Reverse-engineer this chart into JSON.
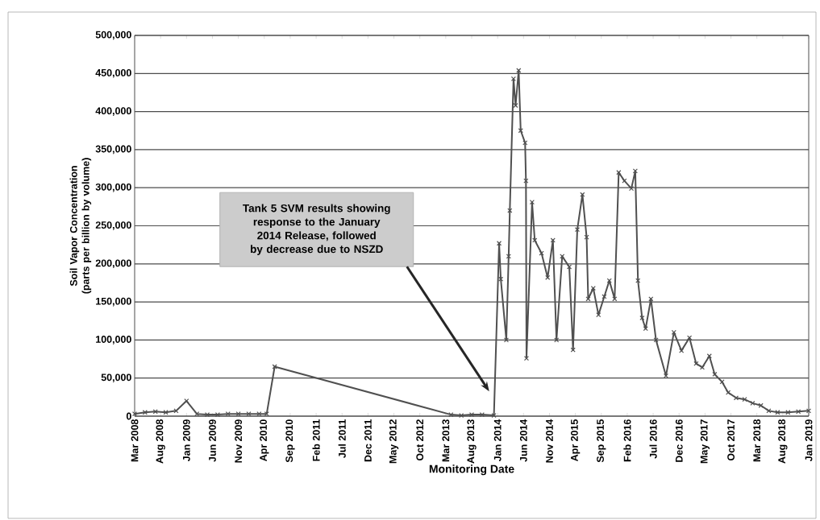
{
  "chart_data": {
    "type": "line",
    "xlabel": "Monitoring Date",
    "ylabel": "Soil Vapor Concentration (parts per billion by volume)",
    "x": [
      "2008-03-01",
      "2008-05-01",
      "2008-07-01",
      "2008-09-01",
      "2008-11-01",
      "2009-01-01",
      "2009-03-01",
      "2009-05-01",
      "2009-07-01",
      "2009-09-01",
      "2009-11-01",
      "2010-01-01",
      "2010-03-01",
      "2010-04-15",
      "2010-06-01",
      "2013-04-01",
      "2013-06-01",
      "2013-08-01",
      "2013-10-01",
      "2013-12-10",
      "2014-01-10",
      "2014-01-20",
      "2014-02-20",
      "2014-03-05",
      "2014-03-12",
      "2014-04-03",
      "2014-04-15",
      "2014-05-03",
      "2014-05-15",
      "2014-06-10",
      "2014-06-15",
      "2014-06-18",
      "2014-07-21",
      "2014-08-06",
      "2014-09-15",
      "2014-10-21",
      "2014-11-21",
      "2014-12-12",
      "2015-01-15",
      "2015-02-24",
      "2015-03-18",
      "2015-04-12",
      "2015-05-12",
      "2015-06-06",
      "2015-06-15",
      "2015-07-15",
      "2015-08-15",
      "2015-09-18",
      "2015-10-18",
      "2015-11-18",
      "2015-12-12",
      "2016-01-15",
      "2016-02-24",
      "2016-03-18",
      "2016-04-03",
      "2016-04-27",
      "2016-05-18",
      "2016-06-18",
      "2016-07-18",
      "2016-09-15",
      "2016-11-01",
      "2016-12-15",
      "2017-02-01",
      "2017-03-10",
      "2017-04-15",
      "2017-05-27",
      "2017-06-27",
      "2017-08-10",
      "2017-09-15",
      "2017-11-01",
      "2017-12-21",
      "2018-02-06",
      "2018-03-25",
      "2018-05-10",
      "2018-07-01",
      "2018-09-01",
      "2018-11-01",
      "2019-01-01"
    ],
    "series": [
      {
        "color": "#505050",
        "values": [
          3000,
          5000,
          6000,
          5000,
          7000,
          20000,
          3000,
          2000,
          2000,
          3000,
          3000,
          3000,
          3000,
          3000,
          65000,
          2000,
          1000,
          2000,
          2000,
          1000,
          227000,
          180000,
          100000,
          210000,
          270000,
          443000,
          408000,
          454000,
          375000,
          359000,
          309000,
          76000,
          281000,
          231000,
          214000,
          182000,
          231000,
          100000,
          210000,
          196000,
          87000,
          245000,
          291000,
          235000,
          154000,
          168000,
          133000,
          157000,
          178000,
          154000,
          320000,
          309000,
          299000,
          322000,
          178000,
          129000,
          115000,
          154000,
          100000,
          53000,
          110000,
          86000,
          103000,
          69000,
          64000,
          79000,
          55000,
          45000,
          31000,
          24000,
          22000,
          17000,
          14000,
          7000,
          5000,
          5000,
          6000,
          7000
        ]
      }
    ],
    "xlim": [
      "2008-03",
      "2019-01"
    ],
    "xticks": [
      {
        "value": "2008-03",
        "label": "Mar 2008"
      },
      {
        "value": "2008-08",
        "label": "Aug 2008"
      },
      {
        "value": "2009-01",
        "label": "Jan 2009"
      },
      {
        "value": "2009-06",
        "label": "Jun 2009"
      },
      {
        "value": "2009-11",
        "label": "Nov 2009"
      },
      {
        "value": "2010-04",
        "label": "Apr 2010"
      },
      {
        "value": "2010-09",
        "label": "Sep 2010"
      },
      {
        "value": "2011-02",
        "label": "Feb 2011"
      },
      {
        "value": "2011-07",
        "label": "Jul 2011"
      },
      {
        "value": "2011-12",
        "label": "Dec 2011"
      },
      {
        "value": "2012-05",
        "label": "May 2012"
      },
      {
        "value": "2012-10",
        "label": "Oct 2012"
      },
      {
        "value": "2013-03",
        "label": "Mar 2013"
      },
      {
        "value": "2013-08",
        "label": "Aug 2013"
      },
      {
        "value": "2014-01",
        "label": "Jan 2014"
      },
      {
        "value": "2014-06",
        "label": "Jun 2014"
      },
      {
        "value": "2014-11",
        "label": "Nov 2014"
      },
      {
        "value": "2015-04",
        "label": "Apr 2015"
      },
      {
        "value": "2015-09",
        "label": "Sep 2015"
      },
      {
        "value": "2016-02",
        "label": "Feb 2016"
      },
      {
        "value": "2016-07",
        "label": "Jul 2016"
      },
      {
        "value": "2016-12",
        "label": "Dec 2016"
      },
      {
        "value": "2017-05",
        "label": "May 2017"
      },
      {
        "value": "2017-10",
        "label": "Oct 2017"
      },
      {
        "value": "2018-03",
        "label": "Mar 2018"
      },
      {
        "value": "2018-08",
        "label": "Aug 2018"
      },
      {
        "value": "2019-01",
        "label": "Jan 2019"
      }
    ],
    "ylim": [
      0,
      500000
    ],
    "yticks": [
      0,
      {
        "value": 50000,
        "label": "50,000"
      },
      {
        "value": 100000,
        "label": "100,000"
      },
      {
        "value": 150000,
        "label": "150,000"
      },
      {
        "value": 200000,
        "label": "200,000"
      },
      {
        "value": 250000,
        "label": "250,000"
      },
      {
        "value": 300000,
        "label": "300,000"
      },
      {
        "value": 350000,
        "label": "350,000"
      },
      {
        "value": 400000,
        "label": "400,000"
      },
      {
        "value": 450000,
        "label": "450,000"
      },
      {
        "value": 500000,
        "label": "500,000"
      }
    ],
    "grid": "y",
    "marker": "cross",
    "line_style": "solid",
    "annotations": [
      "Tank 5 SVM results showing response to the January 2014 Release, followed by decrease due to NSZD"
    ]
  }
}
